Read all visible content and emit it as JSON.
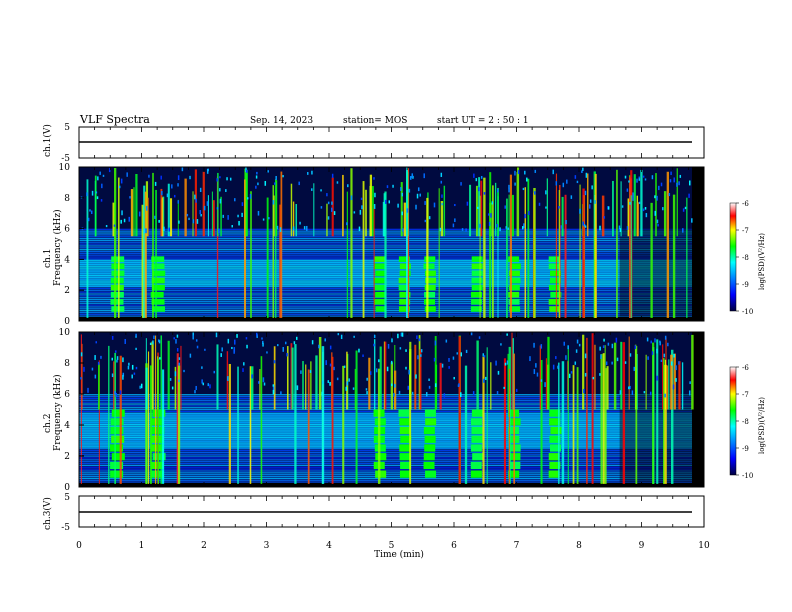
{
  "header": {
    "title": "VLF Spectra",
    "date": "Sep. 14, 2023",
    "station": "station= MOS",
    "start": "start  UT =   2 : 50 : 1"
  },
  "chart_data": [
    {
      "type": "line",
      "id": "ch1-voltage",
      "ylabel": "ch.1(V)",
      "ylim": [
        -5,
        5
      ],
      "yticks": [
        "5",
        "-5"
      ],
      "x": [
        0,
        10
      ],
      "values": [
        0,
        0
      ]
    },
    {
      "type": "heatmap",
      "id": "ch1-spectrogram",
      "ylabel": "ch.1\nFrequency (kHz)",
      "ylabel_lines": [
        "ch.1",
        "Frequency (kHz)"
      ],
      "ylim": [
        0,
        10
      ],
      "yticks": [
        "0",
        "2",
        "4",
        "6",
        "8",
        "10"
      ],
      "xlim": [
        0,
        10
      ],
      "colorbar": {
        "label": "log(PSD)(V²/Hz)",
        "ticks": [
          "-6",
          "-7",
          "-8",
          "-9",
          "-10"
        ],
        "range": [
          -10,
          -6
        ]
      },
      "bursts_min": [
        0.6,
        1.25,
        4.8,
        5.2,
        5.6,
        6.35,
        6.95,
        7.6
      ],
      "hiss_band_khz": [
        2.2,
        4.0
      ]
    },
    {
      "type": "heatmap",
      "id": "ch2-spectrogram",
      "ylabel": "ch.2\nFrequency (kHz)",
      "ylabel_lines": [
        "ch.2",
        "Frequency (kHz)"
      ],
      "ylim": [
        0,
        10
      ],
      "yticks": [
        "0",
        "2",
        "4",
        "6",
        "8",
        "10"
      ],
      "xlim": [
        0,
        10
      ],
      "colorbar": {
        "label": "log(PSD)(V²/Hz)",
        "ticks": [
          "-6",
          "-7",
          "-8",
          "-9",
          "-10"
        ],
        "range": [
          -10,
          -6
        ]
      },
      "bursts_min": [
        0.6,
        1.25,
        4.8,
        5.2,
        5.6,
        6.35,
        6.95,
        7.6
      ],
      "hiss_band_khz": [
        2.5,
        4.8
      ]
    },
    {
      "type": "line",
      "id": "ch3-voltage",
      "ylabel": "ch.3(V)",
      "ylim": [
        -5,
        5
      ],
      "yticks": [
        "5",
        "-5"
      ],
      "x": [
        0,
        10
      ],
      "values": [
        0,
        0
      ]
    }
  ],
  "xaxis": {
    "label": "Time  (min)",
    "ticks": [
      "0",
      "1",
      "2",
      "3",
      "4",
      "5",
      "6",
      "7",
      "8",
      "9",
      "10"
    ]
  }
}
